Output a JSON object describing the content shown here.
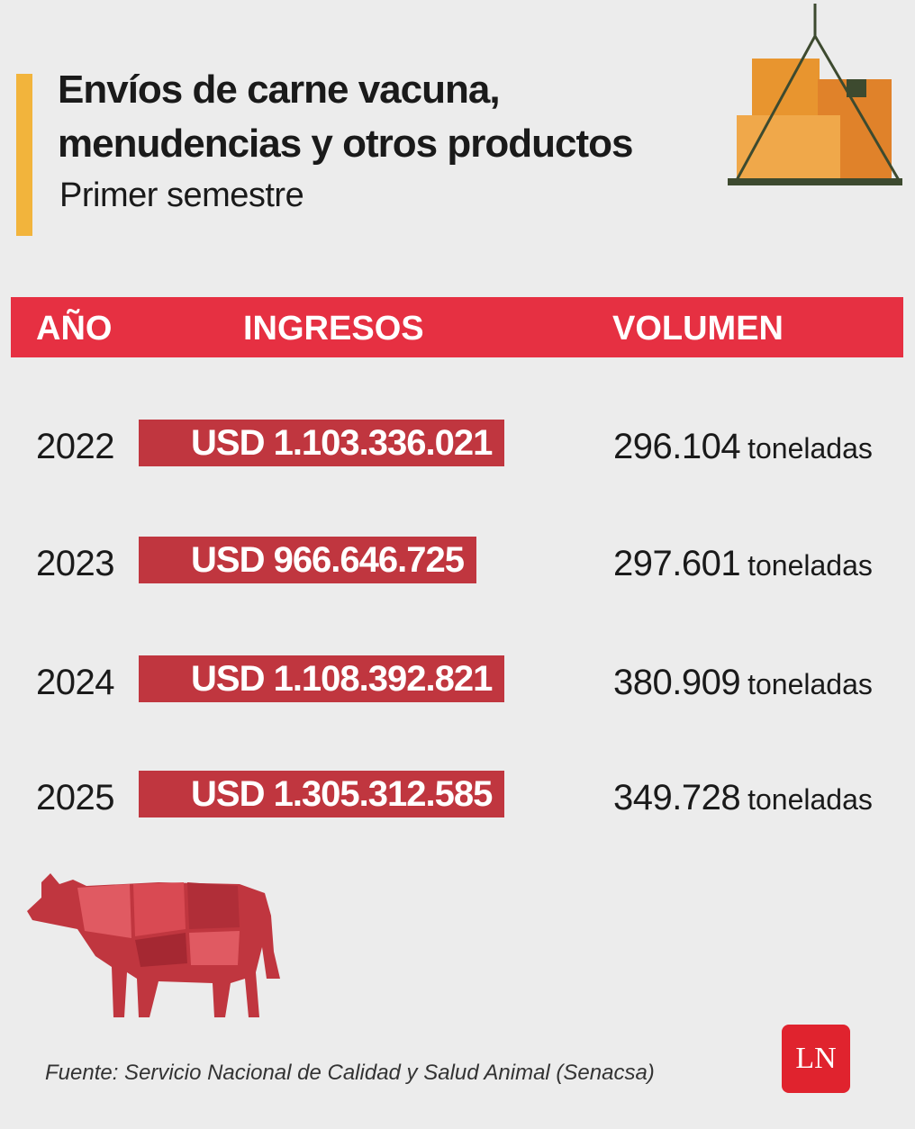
{
  "header": {
    "title": "Envíos de carne vacuna, menudencias y otros productos",
    "subtitle": "Primer semestre"
  },
  "table": {
    "columns": [
      "AÑO",
      "INGRESOS",
      "VOLUMEN"
    ],
    "rows": [
      [
        "2022",
        "USD 1.103.336.021",
        "296.104",
        "toneladas"
      ],
      [
        "2023",
        "USD 966.646.725",
        "297.601",
        "toneladas"
      ],
      [
        "2024",
        "USD 1.108.392.821",
        "380.909",
        "toneladas"
      ],
      [
        "2025",
        "USD 1.305.312.585",
        "349.728",
        "toneladas"
      ]
    ]
  },
  "source": "Fuente: Servicio Nacional de Calidad y Salud Animal (Senacsa)",
  "logo": "LN"
}
